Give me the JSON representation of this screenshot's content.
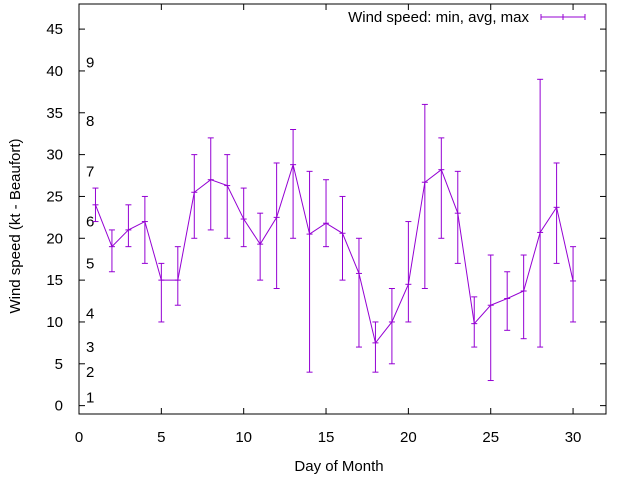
{
  "chart_data": {
    "type": "line",
    "xlabel": "Day of Month",
    "ylabel": "Wind speed (kt - Beaufort)",
    "xlim": [
      0,
      32
    ],
    "ylim": [
      -1,
      48
    ],
    "xticks": [
      0,
      5,
      10,
      15,
      20,
      25,
      30
    ],
    "yticks": [
      0,
      5,
      10,
      15,
      20,
      25,
      30,
      35,
      40,
      45
    ],
    "grid": false,
    "legend_position": "top-right",
    "beaufort_labels": [
      {
        "label": "1",
        "value": 1
      },
      {
        "label": "2",
        "value": 4
      },
      {
        "label": "3",
        "value": 7
      },
      {
        "label": "4",
        "value": 11
      },
      {
        "label": "5",
        "value": 17
      },
      {
        "label": "6",
        "value": 22
      },
      {
        "label": "7",
        "value": 28
      },
      {
        "label": "8",
        "value": 34
      },
      {
        "label": "9",
        "value": 41
      }
    ],
    "series": [
      {
        "name": "Wind speed: min, avg, max",
        "color": "#9400d3",
        "x": [
          1,
          2,
          3,
          4,
          5,
          6,
          7,
          8,
          9,
          10,
          11,
          12,
          13,
          14,
          15,
          16,
          17,
          18,
          19,
          20,
          21,
          22,
          23,
          24,
          25,
          26,
          27,
          28,
          29,
          30
        ],
        "avg": [
          24,
          19,
          21,
          22,
          15,
          15,
          25.5,
          27,
          26.3,
          22.3,
          19.3,
          22.5,
          28.8,
          20.5,
          21.8,
          20.6,
          15.8,
          7.5,
          10,
          14.5,
          26.7,
          28.2,
          23,
          9.8,
          12,
          12.8,
          13.7,
          20.7,
          23.7,
          14.9
        ],
        "min": [
          22,
          16,
          19,
          17,
          10,
          12,
          20,
          21,
          20,
          19,
          15,
          14,
          20,
          4,
          19,
          15,
          7,
          4,
          5,
          10,
          14,
          20,
          17,
          7,
          3,
          9,
          8,
          7,
          17,
          10
        ],
        "max": [
          26,
          21,
          24,
          25,
          17,
          19,
          30,
          32,
          30,
          26,
          23,
          29,
          33,
          28,
          27,
          25,
          20,
          10,
          14,
          22,
          36,
          32,
          28,
          13,
          18,
          16,
          18,
          39,
          29,
          19
        ]
      }
    ]
  }
}
